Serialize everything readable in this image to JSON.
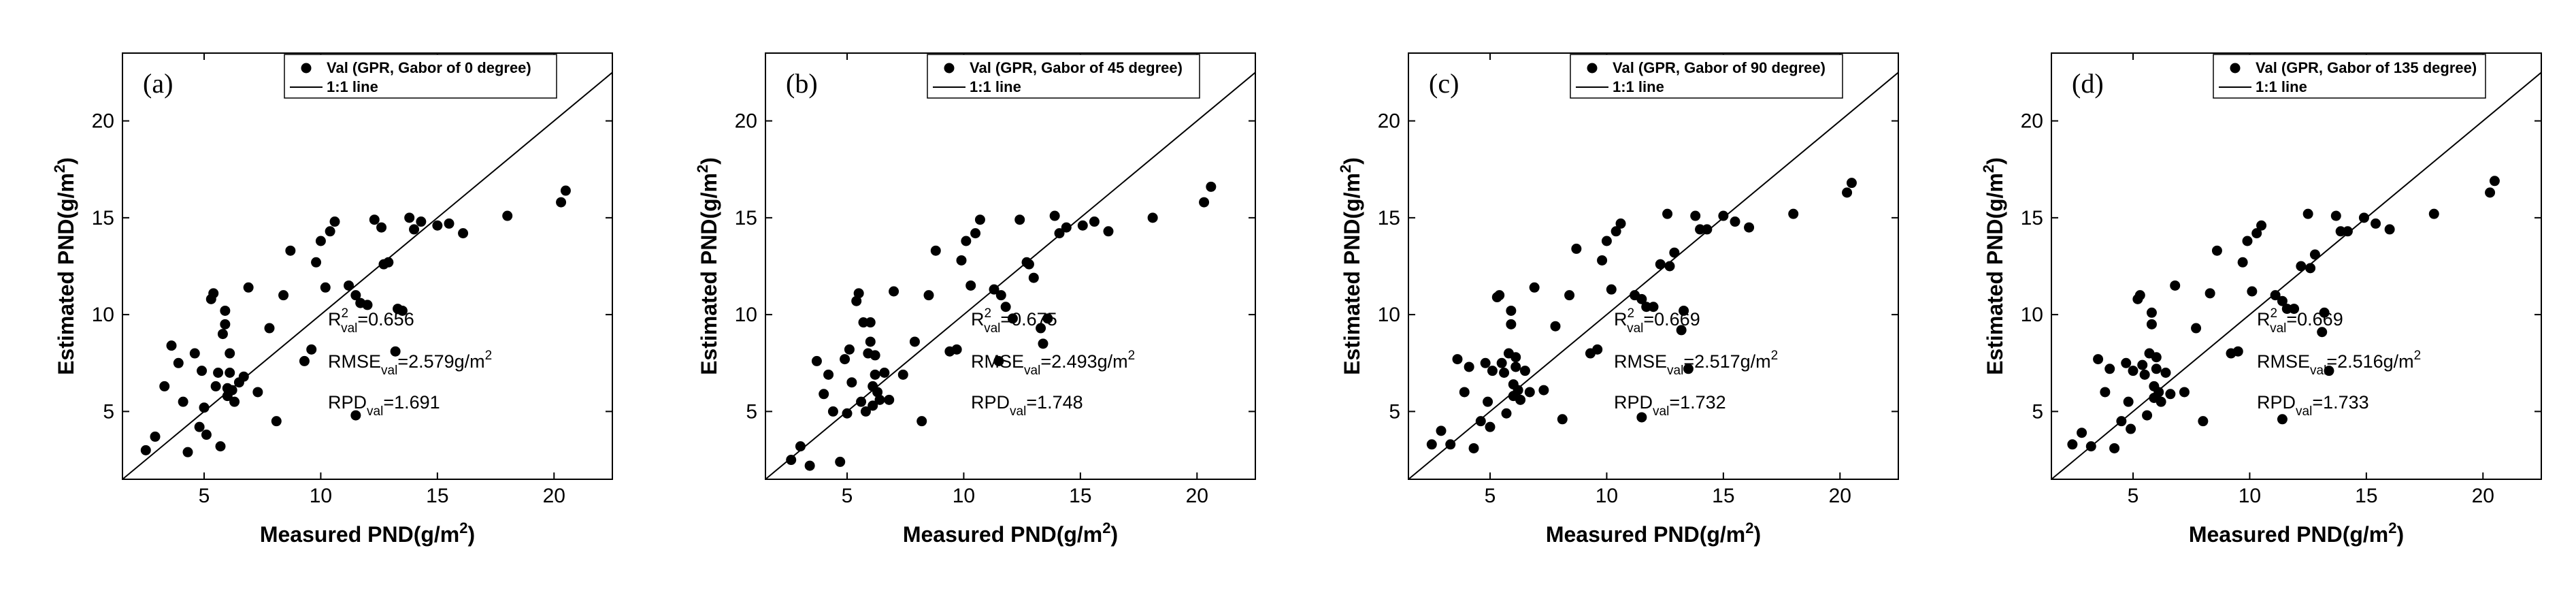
{
  "colors": {
    "axis": "#000000",
    "marker": "#000000",
    "background": "#ffffff"
  },
  "chart_data": [
    {
      "type": "scatter",
      "panel_label": "(a)",
      "legend": {
        "placement": "top-right",
        "series_label": "Val (GPR, Gabor of 0 degree)",
        "line_label": "1:1 line"
      },
      "xlabel": {
        "text": "Measured PND(g/m",
        "sup": "2",
        "tail": ")"
      },
      "ylabel": {
        "text": "Estimated PND(g/m",
        "sup": "2",
        "tail": ")"
      },
      "xlim": [
        1.5,
        22.5
      ],
      "ylim": [
        1.5,
        23.5
      ],
      "xticks": [
        5,
        10,
        15,
        20
      ],
      "yticks": [
        5,
        10,
        15,
        20
      ],
      "x_tick_labels": [
        "5",
        "10",
        "15",
        "20"
      ],
      "y_tick_labels": [
        "5",
        "10",
        "15",
        "20"
      ],
      "stats": {
        "r2": {
          "base": "R",
          "sup": "2",
          "sub": "val",
          "value": "=0.656"
        },
        "rmse": {
          "base": "RMSE",
          "sub": "val",
          "value": "=2.579g/m",
          "sup": "2"
        },
        "rpd": {
          "base": "RPD",
          "sub": "val",
          "value": "=1.691"
        }
      },
      "x": [
        2.5,
        2.9,
        3.3,
        3.6,
        3.9,
        4.1,
        4.3,
        4.6,
        4.8,
        4.9,
        5.0,
        5.1,
        5.3,
        5.4,
        5.5,
        5.6,
        5.7,
        5.8,
        5.9,
        5.9,
        6.0,
        6.0,
        6.1,
        6.1,
        6.2,
        6.3,
        6.5,
        6.7,
        6.9,
        7.3,
        7.8,
        8.1,
        8.4,
        8.7,
        9.3,
        9.6,
        9.8,
        10.0,
        10.2,
        10.4,
        10.6,
        11.2,
        11.5,
        11.5,
        11.7,
        12.0,
        12.3,
        12.6,
        12.7,
        12.9,
        13.2,
        13.3,
        13.5,
        13.8,
        14.0,
        14.3,
        15.0,
        15.5,
        16.1,
        18.0,
        20.3,
        20.5
      ],
      "y": [
        3.0,
        3.7,
        6.3,
        8.4,
        7.5,
        5.5,
        2.9,
        8.0,
        4.2,
        7.1,
        5.2,
        3.8,
        10.8,
        11.1,
        6.3,
        7.0,
        3.2,
        9.0,
        9.5,
        10.2,
        5.8,
        6.2,
        7.0,
        8.0,
        6.1,
        5.5,
        6.5,
        6.8,
        11.4,
        6.0,
        9.3,
        4.5,
        11.0,
        13.3,
        7.6,
        8.2,
        12.7,
        13.8,
        11.4,
        14.3,
        14.8,
        11.5,
        4.8,
        11.0,
        10.6,
        10.5,
        14.9,
        14.5,
        12.6,
        12.7,
        8.1,
        10.3,
        10.2,
        15.0,
        14.4,
        14.8,
        14.6,
        14.7,
        14.2,
        15.1,
        15.8,
        16.4
      ]
    },
    {
      "type": "scatter",
      "panel_label": "(b)",
      "legend": {
        "placement": "top-right",
        "series_label": "Val (GPR, Gabor of 45 degree)",
        "line_label": "1:1 line"
      },
      "xlabel": {
        "text": "Measured PND(g/m",
        "sup": "2",
        "tail": ")"
      },
      "ylabel": {
        "text": "Estimated PND(g/m",
        "sup": "2",
        "tail": ")"
      },
      "xlim": [
        1.5,
        22.5
      ],
      "ylim": [
        1.5,
        23.5
      ],
      "xticks": [
        5,
        10,
        15,
        20
      ],
      "yticks": [
        5,
        10,
        15,
        20
      ],
      "x_tick_labels": [
        "5",
        "10",
        "15",
        "20"
      ],
      "y_tick_labels": [
        "5",
        "10",
        "15",
        "20"
      ],
      "stats": {
        "r2": {
          "base": "R",
          "sup": "2",
          "sub": "val",
          "value": "=0.675"
        },
        "rmse": {
          "base": "RMSE",
          "sub": "val",
          "value": "=2.493g/m",
          "sup": "2"
        },
        "rpd": {
          "base": "RPD",
          "sub": "val",
          "value": "=1.748"
        }
      },
      "x": [
        2.6,
        3.0,
        3.4,
        3.7,
        4.0,
        4.2,
        4.4,
        4.7,
        4.9,
        5.0,
        5.1,
        5.2,
        5.4,
        5.5,
        5.6,
        5.7,
        5.8,
        5.9,
        6.0,
        6.0,
        6.1,
        6.1,
        6.2,
        6.2,
        6.3,
        6.4,
        6.6,
        6.8,
        7.0,
        7.4,
        7.9,
        8.2,
        8.5,
        8.8,
        9.4,
        9.7,
        9.9,
        10.1,
        10.3,
        10.5,
        10.7,
        11.3,
        11.5,
        11.6,
        11.8,
        12.1,
        12.4,
        12.7,
        12.8,
        13.0,
        13.3,
        13.4,
        13.6,
        13.9,
        14.1,
        14.4,
        15.1,
        15.6,
        16.2,
        18.1,
        20.3,
        20.6
      ],
      "y": [
        2.5,
        3.2,
        2.2,
        7.6,
        5.9,
        6.9,
        5.0,
        2.4,
        7.7,
        4.9,
        8.2,
        6.5,
        10.7,
        11.1,
        5.5,
        9.6,
        5.0,
        8.0,
        9.6,
        8.6,
        5.3,
        6.3,
        6.9,
        7.9,
        6.0,
        5.6,
        7.0,
        5.6,
        11.2,
        6.9,
        8.6,
        4.5,
        11.0,
        13.3,
        8.1,
        8.2,
        12.8,
        13.8,
        11.5,
        14.2,
        14.9,
        11.3,
        7.6,
        11.0,
        10.4,
        9.8,
        14.9,
        12.7,
        12.6,
        11.9,
        9.3,
        8.5,
        9.8,
        15.1,
        14.2,
        14.5,
        14.6,
        14.8,
        14.3,
        15.0,
        15.8,
        16.6
      ]
    },
    {
      "type": "scatter",
      "panel_label": "(c)",
      "legend": {
        "placement": "top-right",
        "series_label": "Val (GPR, Gabor of 90 degree)",
        "line_label": "1:1 line"
      },
      "xlabel": {
        "text": "Measured PND(g/m",
        "sup": "2",
        "tail": ")"
      },
      "ylabel": {
        "text": "Estimated PND(g/m",
        "sup": "2",
        "tail": ")"
      },
      "xlim": [
        1.5,
        22.5
      ],
      "ylim": [
        1.5,
        23.5
      ],
      "xticks": [
        5,
        10,
        15,
        20
      ],
      "yticks": [
        5,
        10,
        15,
        20
      ],
      "x_tick_labels": [
        "5",
        "10",
        "15",
        "20"
      ],
      "y_tick_labels": [
        "5",
        "10",
        "15",
        "20"
      ],
      "stats": {
        "r2": {
          "base": "R",
          "sup": "2",
          "sub": "val",
          "value": "=0.669"
        },
        "rmse": {
          "base": "RMSE",
          "sub": "val",
          "value": "=2.517g/m",
          "sup": "2"
        },
        "rpd": {
          "base": "RPD",
          "sub": "val",
          "value": "=1.732"
        }
      },
      "x": [
        2.5,
        2.9,
        3.3,
        3.6,
        3.9,
        4.1,
        4.3,
        4.6,
        4.8,
        4.9,
        5.0,
        5.1,
        5.3,
        5.4,
        5.5,
        5.6,
        5.7,
        5.8,
        5.9,
        5.9,
        6.0,
        6.0,
        6.1,
        6.1,
        6.2,
        6.3,
        6.5,
        6.7,
        6.9,
        7.3,
        7.8,
        8.1,
        8.4,
        8.7,
        9.3,
        9.6,
        9.8,
        10.0,
        10.2,
        10.4,
        10.6,
        11.2,
        11.5,
        11.5,
        11.7,
        12.0,
        12.3,
        12.6,
        12.7,
        12.9,
        13.2,
        13.3,
        13.5,
        13.8,
        14.0,
        14.3,
        15.0,
        15.5,
        16.1,
        18.0,
        20.3,
        20.5
      ],
      "y": [
        3.3,
        4.0,
        3.3,
        7.7,
        6.0,
        7.3,
        3.1,
        4.5,
        7.5,
        5.5,
        4.2,
        7.1,
        10.9,
        11.0,
        7.5,
        7.0,
        4.9,
        8.0,
        9.5,
        10.2,
        5.8,
        6.4,
        7.3,
        7.8,
        6.1,
        5.6,
        7.1,
        6.0,
        11.4,
        6.1,
        9.4,
        4.6,
        11.0,
        13.4,
        8.0,
        8.2,
        12.8,
        13.8,
        11.3,
        14.3,
        14.7,
        11.0,
        4.7,
        10.8,
        10.4,
        10.4,
        12.6,
        15.2,
        12.5,
        13.2,
        9.2,
        10.2,
        7.2,
        15.1,
        14.4,
        14.4,
        15.1,
        14.8,
        14.5,
        15.2,
        16.3,
        16.8
      ]
    },
    {
      "type": "scatter",
      "panel_label": "(d)",
      "legend": {
        "placement": "top-right",
        "series_label": "Val (GPR, Gabor of 135 degree)",
        "line_label": "1:1 line"
      },
      "xlabel": {
        "text": "Measured PND(g/m",
        "sup": "2",
        "tail": ")"
      },
      "ylabel": {
        "text": "Estimated PND(g/m",
        "sup": "2",
        "tail": ")"
      },
      "xlim": [
        1.5,
        22.5
      ],
      "ylim": [
        1.5,
        23.5
      ],
      "xticks": [
        5,
        10,
        15,
        20
      ],
      "yticks": [
        5,
        10,
        15,
        20
      ],
      "x_tick_labels": [
        "5",
        "10",
        "15",
        "20"
      ],
      "y_tick_labels": [
        "5",
        "10",
        "15",
        "20"
      ],
      "stats": {
        "r2": {
          "base": "R",
          "sup": "2",
          "sub": "val",
          "value": "=0.669"
        },
        "rmse": {
          "base": "RMSE",
          "sub": "val",
          "value": "=2.516g/m",
          "sup": "2"
        },
        "rpd": {
          "base": "RPD",
          "sub": "val",
          "value": "=1.733"
        }
      },
      "x": [
        2.4,
        2.8,
        3.2,
        3.5,
        3.8,
        4.0,
        4.2,
        4.5,
        4.7,
        4.8,
        4.9,
        5.0,
        5.2,
        5.3,
        5.4,
        5.5,
        5.6,
        5.7,
        5.8,
        5.8,
        5.9,
        5.9,
        6.0,
        6.0,
        6.1,
        6.2,
        6.4,
        6.6,
        6.8,
        7.2,
        7.7,
        8.0,
        8.3,
        8.6,
        9.2,
        9.5,
        9.7,
        9.9,
        10.1,
        10.3,
        10.5,
        11.1,
        11.4,
        11.4,
        11.6,
        11.9,
        12.2,
        12.5,
        12.6,
        12.8,
        13.1,
        13.2,
        13.4,
        13.7,
        13.9,
        14.2,
        14.9,
        15.4,
        16.0,
        17.9,
        20.3,
        20.5
      ],
      "y": [
        3.3,
        3.9,
        3.2,
        7.7,
        6.0,
        7.2,
        3.1,
        4.5,
        7.5,
        5.5,
        4.1,
        7.1,
        10.8,
        11.0,
        7.4,
        6.9,
        4.8,
        8.0,
        9.5,
        10.1,
        5.7,
        6.3,
        7.2,
        7.8,
        6.0,
        5.5,
        7.0,
        5.9,
        11.5,
        6.0,
        9.3,
        4.5,
        11.1,
        13.3,
        8.0,
        8.1,
        12.7,
        13.8,
        11.2,
        14.2,
        14.6,
        11.0,
        4.6,
        10.7,
        10.3,
        10.3,
        12.5,
        15.2,
        12.4,
        13.1,
        9.1,
        10.1,
        7.1,
        15.1,
        14.3,
        14.3,
        15.0,
        14.7,
        14.4,
        15.2,
        16.3,
        16.9
      ]
    }
  ]
}
